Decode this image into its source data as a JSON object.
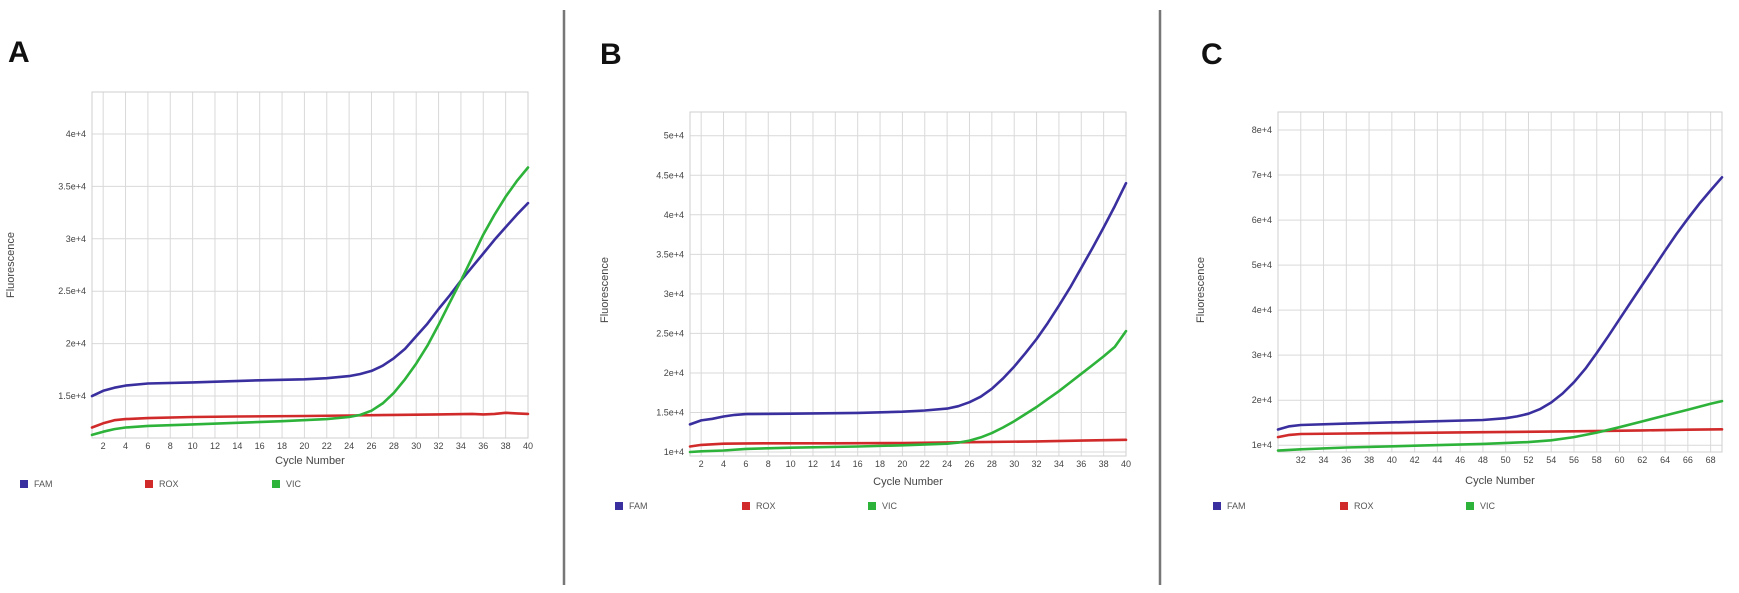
{
  "colors": {
    "FAM": "#3a2f9e",
    "ROX": "#d12a2a",
    "VIC": "#2eb33a"
  },
  "chart_data": [
    {
      "panel": "A",
      "type": "line",
      "xlabel": "Cycle Number",
      "ylabel": "Fluorescence",
      "xlim": [
        1,
        40
      ],
      "ylim": [
        11000,
        44000
      ],
      "x_ticks": [
        2,
        4,
        6,
        8,
        10,
        12,
        14,
        16,
        18,
        20,
        22,
        24,
        26,
        28,
        30,
        32,
        34,
        36,
        38,
        40
      ],
      "x_tick_labels": [
        "2",
        "4",
        "6",
        "8",
        "10",
        "12",
        "14",
        "16",
        "18",
        "20",
        "22",
        "24",
        "26",
        "28",
        "30",
        "32",
        "34",
        "36",
        "38",
        "40"
      ],
      "y_ticks": [
        15000,
        20000,
        25000,
        30000,
        35000,
        40000
      ],
      "y_tick_labels": [
        "1.5e+4",
        "2e+4",
        "2.5e+4",
        "3e+4",
        "3.5e+4",
        "4e+4"
      ],
      "grid": true,
      "legend": [
        "FAM",
        "ROX",
        "VIC"
      ],
      "series": [
        {
          "name": "FAM",
          "points": [
            [
              1,
              15000
            ],
            [
              2,
              15500
            ],
            [
              3,
              15800
            ],
            [
              4,
              16000
            ],
            [
              6,
              16200
            ],
            [
              10,
              16300
            ],
            [
              16,
              16500
            ],
            [
              20,
              16600
            ],
            [
              22,
              16700
            ],
            [
              24,
              16900
            ],
            [
              25,
              17100
            ],
            [
              26,
              17400
            ],
            [
              27,
              17900
            ],
            [
              28,
              18600
            ],
            [
              29,
              19500
            ],
            [
              30,
              20700
            ],
            [
              31,
              21900
            ],
            [
              32,
              23300
            ],
            [
              33,
              24600
            ],
            [
              34,
              26000
            ],
            [
              35,
              27300
            ],
            [
              36,
              28600
            ],
            [
              37,
              29900
            ],
            [
              38,
              31100
            ],
            [
              39,
              32300
            ],
            [
              40,
              33400
            ]
          ]
        },
        {
          "name": "ROX",
          "points": [
            [
              1,
              12000
            ],
            [
              2,
              12400
            ],
            [
              3,
              12700
            ],
            [
              4,
              12800
            ],
            [
              6,
              12900
            ],
            [
              10,
              13000
            ],
            [
              14,
              13050
            ],
            [
              20,
              13100
            ],
            [
              24,
              13150
            ],
            [
              28,
              13200
            ],
            [
              32,
              13250
            ],
            [
              35,
              13300
            ],
            [
              36,
              13250
            ],
            [
              37,
              13300
            ],
            [
              38,
              13400
            ],
            [
              39,
              13350
            ],
            [
              40,
              13300
            ]
          ]
        },
        {
          "name": "VIC",
          "points": [
            [
              1,
              11300
            ],
            [
              2,
              11600
            ],
            [
              3,
              11850
            ],
            [
              4,
              12000
            ],
            [
              6,
              12150
            ],
            [
              10,
              12300
            ],
            [
              14,
              12450
            ],
            [
              18,
              12600
            ],
            [
              22,
              12800
            ],
            [
              24,
              13000
            ],
            [
              25,
              13200
            ],
            [
              26,
              13600
            ],
            [
              27,
              14300
            ],
            [
              28,
              15300
            ],
            [
              29,
              16600
            ],
            [
              30,
              18100
            ],
            [
              31,
              19800
            ],
            [
              32,
              21800
            ],
            [
              33,
              23900
            ],
            [
              34,
              26000
            ],
            [
              35,
              28200
            ],
            [
              36,
              30400
            ],
            [
              37,
              32300
            ],
            [
              38,
              34000
            ],
            [
              39,
              35500
            ],
            [
              40,
              36800
            ]
          ]
        }
      ]
    },
    {
      "panel": "B",
      "type": "line",
      "xlabel": "Cycle Number",
      "ylabel": "Fluorescence",
      "xlim": [
        1,
        40
      ],
      "ylim": [
        9500,
        53000
      ],
      "x_ticks": [
        2,
        4,
        6,
        8,
        10,
        12,
        14,
        16,
        18,
        20,
        22,
        24,
        26,
        28,
        30,
        32,
        34,
        36,
        38,
        40
      ],
      "x_tick_labels": [
        "2",
        "4",
        "6",
        "8",
        "10",
        "12",
        "14",
        "16",
        "18",
        "20",
        "22",
        "24",
        "26",
        "28",
        "30",
        "32",
        "34",
        "36",
        "38",
        "40"
      ],
      "y_ticks": [
        10000,
        15000,
        20000,
        25000,
        30000,
        35000,
        40000,
        45000,
        50000
      ],
      "y_tick_labels": [
        "1e+4",
        "1.5e+4",
        "2e+4",
        "2.5e+4",
        "3e+4",
        "3.5e+4",
        "4e+4",
        "4.5e+4",
        "5e+4"
      ],
      "grid": true,
      "legend": [
        "FAM",
        "ROX",
        "VIC"
      ],
      "series": [
        {
          "name": "FAM",
          "points": [
            [
              1,
              13500
            ],
            [
              2,
              14000
            ],
            [
              3,
              14200
            ],
            [
              4,
              14500
            ],
            [
              5,
              14700
            ],
            [
              6,
              14800
            ],
            [
              10,
              14850
            ],
            [
              16,
              14950
            ],
            [
              20,
              15100
            ],
            [
              22,
              15250
            ],
            [
              24,
              15500
            ],
            [
              25,
              15800
            ],
            [
              26,
              16300
            ],
            [
              27,
              17000
            ],
            [
              28,
              18000
            ],
            [
              29,
              19300
            ],
            [
              30,
              20800
            ],
            [
              31,
              22500
            ],
            [
              32,
              24300
            ],
            [
              33,
              26300
            ],
            [
              34,
              28500
            ],
            [
              35,
              30800
            ],
            [
              36,
              33300
            ],
            [
              37,
              35800
            ],
            [
              38,
              38400
            ],
            [
              39,
              41100
            ],
            [
              40,
              44000
            ]
          ]
        },
        {
          "name": "ROX",
          "points": [
            [
              1,
              10700
            ],
            [
              2,
              10900
            ],
            [
              4,
              11050
            ],
            [
              8,
              11100
            ],
            [
              14,
              11100
            ],
            [
              20,
              11150
            ],
            [
              26,
              11250
            ],
            [
              32,
              11350
            ],
            [
              36,
              11450
            ],
            [
              40,
              11550
            ]
          ]
        },
        {
          "name": "VIC",
          "points": [
            [
              1,
              10000
            ],
            [
              2,
              10100
            ],
            [
              4,
              10200
            ],
            [
              6,
              10400
            ],
            [
              10,
              10550
            ],
            [
              16,
              10700
            ],
            [
              20,
              10850
            ],
            [
              24,
              11050
            ],
            [
              25,
              11200
            ],
            [
              26,
              11450
            ],
            [
              27,
              11850
            ],
            [
              28,
              12400
            ],
            [
              29,
              13100
            ],
            [
              30,
              13900
            ],
            [
              31,
              14800
            ],
            [
              32,
              15700
            ],
            [
              33,
              16700
            ],
            [
              34,
              17700
            ],
            [
              35,
              18800
            ],
            [
              36,
              19900
            ],
            [
              37,
              21000
            ],
            [
              38,
              22100
            ],
            [
              39,
              23300
            ],
            [
              40,
              25300
            ]
          ]
        }
      ]
    },
    {
      "panel": "C",
      "type": "line",
      "xlabel": "Cycle Number",
      "ylabel": "Fluorescence",
      "xlim": [
        30,
        69
      ],
      "ylim": [
        8500,
        84000
      ],
      "x_ticks": [
        32,
        34,
        36,
        38,
        40,
        42,
        44,
        46,
        48,
        50,
        52,
        54,
        56,
        58,
        60,
        62,
        64,
        66,
        68
      ],
      "x_tick_labels": [
        "32",
        "34",
        "36",
        "38",
        "40",
        "42",
        "44",
        "46",
        "48",
        "50",
        "52",
        "54",
        "56",
        "58",
        "60",
        "62",
        "64",
        "66",
        "68"
      ],
      "y_ticks": [
        10000,
        20000,
        30000,
        40000,
        50000,
        60000,
        70000,
        80000
      ],
      "y_tick_labels": [
        "1e+4",
        "2e+4",
        "3e+4",
        "4e+4",
        "5e+4",
        "6e+4",
        "7e+4",
        "8e+4"
      ],
      "grid": true,
      "legend": [
        "FAM",
        "ROX",
        "VIC"
      ],
      "series": [
        {
          "name": "FAM",
          "points": [
            [
              30,
              13500
            ],
            [
              31,
              14200
            ],
            [
              32,
              14500
            ],
            [
              36,
              14800
            ],
            [
              42,
              15200
            ],
            [
              48,
              15600
            ],
            [
              50,
              16000
            ],
            [
              51,
              16400
            ],
            [
              52,
              17000
            ],
            [
              53,
              18000
            ],
            [
              54,
              19500
            ],
            [
              55,
              21500
            ],
            [
              56,
              24000
            ],
            [
              57,
              27000
            ],
            [
              58,
              30500
            ],
            [
              59,
              34200
            ],
            [
              60,
              38000
            ],
            [
              61,
              41800
            ],
            [
              62,
              45600
            ],
            [
              63,
              49400
            ],
            [
              64,
              53200
            ],
            [
              65,
              56900
            ],
            [
              66,
              60300
            ],
            [
              67,
              63600
            ],
            [
              68,
              66600
            ],
            [
              69,
              69500
            ]
          ]
        },
        {
          "name": "ROX",
          "points": [
            [
              30,
              11800
            ],
            [
              31,
              12300
            ],
            [
              32,
              12500
            ],
            [
              40,
              12700
            ],
            [
              48,
              12900
            ],
            [
              56,
              13100
            ],
            [
              62,
              13300
            ],
            [
              66,
              13450
            ],
            [
              69,
              13550
            ]
          ]
        },
        {
          "name": "VIC",
          "points": [
            [
              30,
              8800
            ],
            [
              32,
              9100
            ],
            [
              36,
              9500
            ],
            [
              42,
              9900
            ],
            [
              48,
              10300
            ],
            [
              52,
              10700
            ],
            [
              54,
              11100
            ],
            [
              56,
              11800
            ],
            [
              58,
              12800
            ],
            [
              60,
              14000
            ],
            [
              62,
              15300
            ],
            [
              64,
              16600
            ],
            [
              66,
              17900
            ],
            [
              68,
              19200
            ],
            [
              69,
              19800
            ]
          ]
        }
      ]
    }
  ]
}
